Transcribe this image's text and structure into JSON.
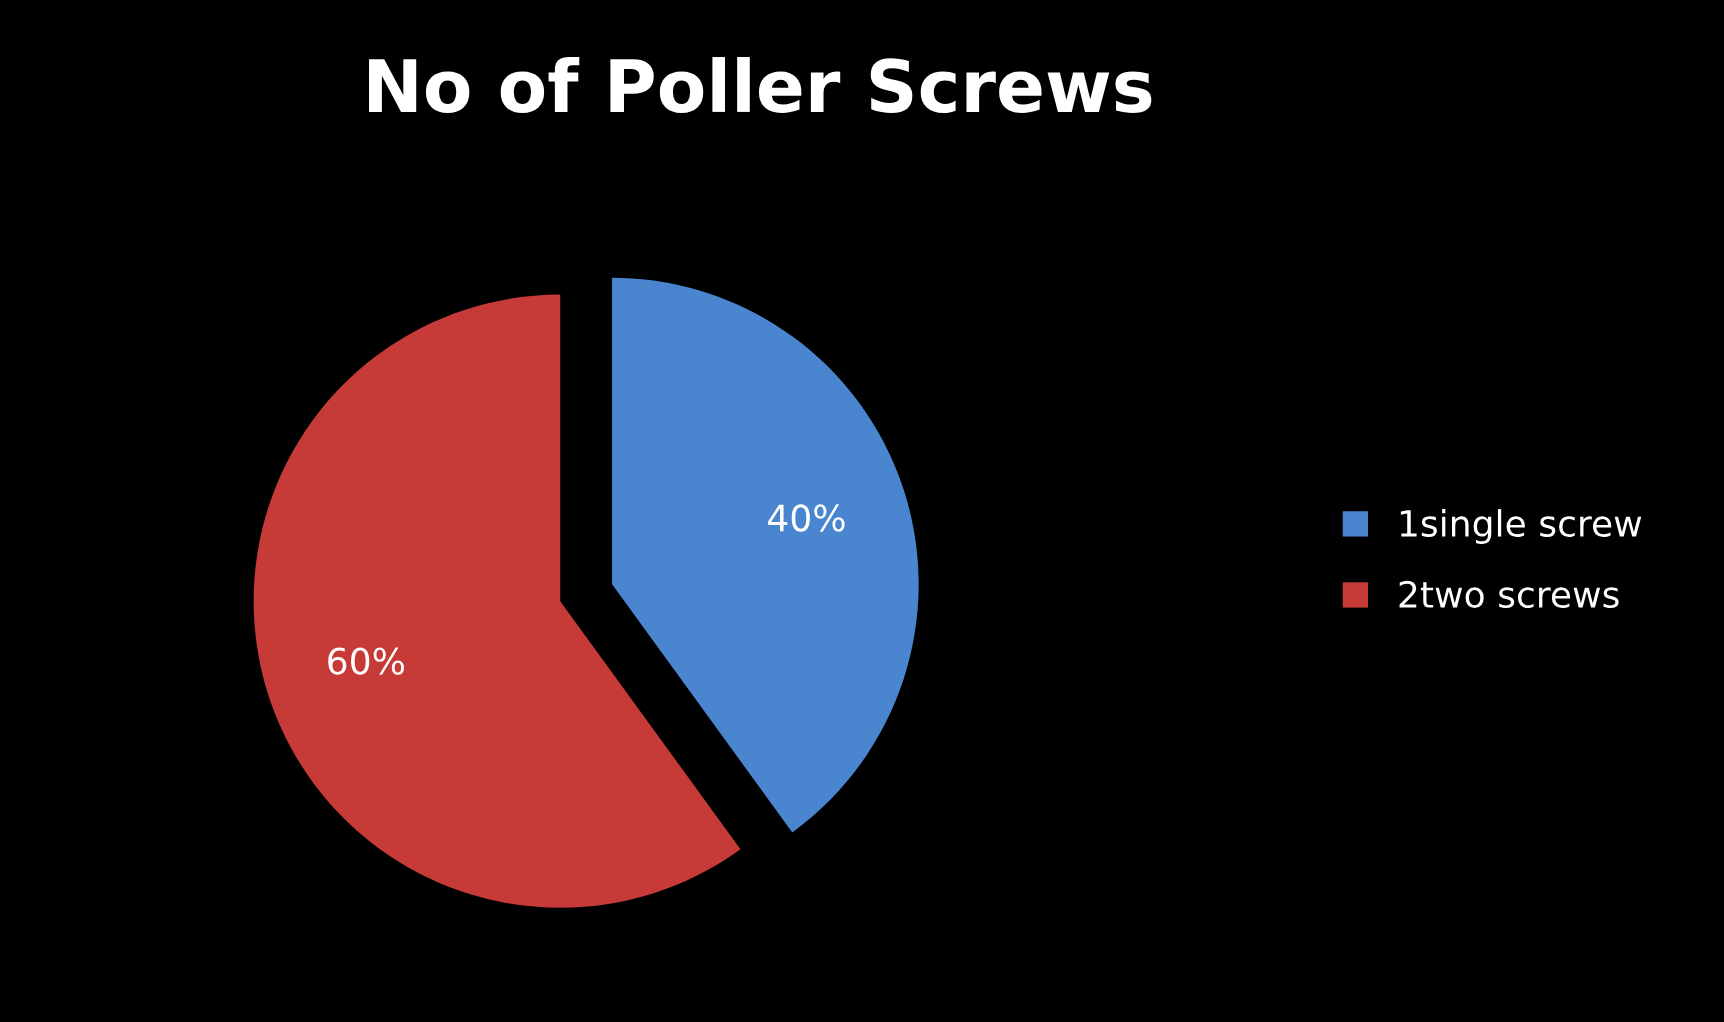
{
  "chart_data": {
    "type": "pie",
    "title": "No of Poller Screws",
    "categories": [
      "1single screw",
      "2two screws"
    ],
    "values": [
      40,
      60
    ],
    "colors": [
      "#4a86d0",
      "#c63b38"
    ],
    "value_labels": [
      "40%",
      "60%"
    ],
    "legend": "right"
  }
}
